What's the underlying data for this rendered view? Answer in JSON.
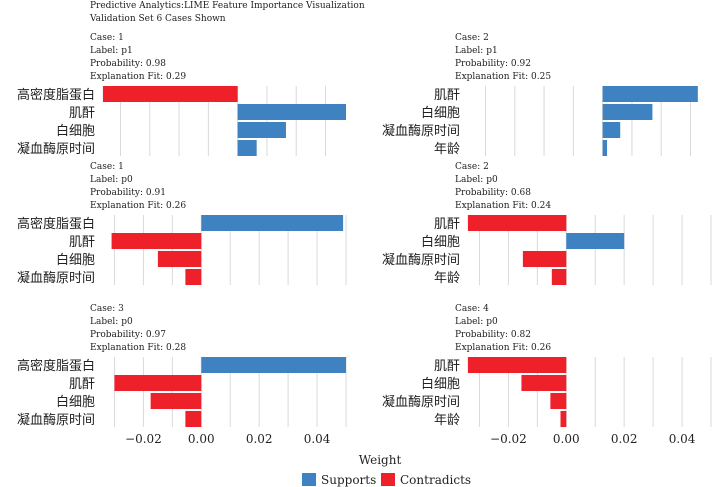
{
  "title": "Predictive Analytics:LIME Feature Importance Visualization",
  "subtitle": "Validation Set 6 Cases Shown",
  "colors": {
    "supports": "#3E82C1",
    "contradicts": "#EE2029",
    "grid": "#D9D9D9"
  },
  "chart_data": {
    "type": "bar",
    "orientation": "horizontal",
    "xlabel": "Weight",
    "xlim": [
      -0.035,
      0.05
    ],
    "x_ticks": [
      "−0.02",
      "0.00",
      "0.02",
      "0.04"
    ],
    "x_tick_values": [
      -0.02,
      0.0,
      0.02,
      0.04
    ],
    "legend": {
      "position": "bottom",
      "items": [
        {
          "label": "Supports",
          "key": "supports"
        },
        {
          "label": "Contradicts",
          "key": "contradicts"
        }
      ]
    },
    "panels": [
      {
        "case_label": "Case: 1",
        "label_text": "Label: p1",
        "probability_text": "Probability: 0.98",
        "fit_text": "Explanation Fit: 0.29",
        "xlim": [
          -0.047,
          0.037
        ],
        "features": [
          "高密度脂蛋白",
          "肌酐",
          "白细胞",
          "凝血酶原时间"
        ],
        "values": [
          -0.046,
          0.037,
          0.0165,
          0.0065
        ]
      },
      {
        "case_label": "Case: 2",
        "label_text": "Label: p1",
        "probability_text": "Probability: 0.92",
        "fit_text": "Explanation Fit: 0.25",
        "xlim": [
          -0.047,
          0.037
        ],
        "features": [
          "肌酐",
          "白细胞",
          "凝血酶原时间",
          "年龄"
        ],
        "values": [
          0.0325,
          0.017,
          0.006,
          0.0015
        ]
      },
      {
        "case_label": "Case: 1",
        "label_text": "Label: p0",
        "probability_text": "Probability: 0.91",
        "fit_text": "Explanation Fit: 0.26",
        "xlim": [
          -0.035,
          0.05
        ],
        "features": [
          "高密度脂蛋白",
          "肌酐",
          "白细胞",
          "凝血酶原时间"
        ],
        "values": [
          0.049,
          -0.031,
          -0.015,
          -0.0055
        ]
      },
      {
        "case_label": "Case: 2",
        "label_text": "Label: p0",
        "probability_text": "Probability: 0.68",
        "fit_text": "Explanation Fit: 0.24",
        "xlim": [
          -0.035,
          0.05
        ],
        "features": [
          "肌酐",
          "白细胞",
          "凝血酶原时间",
          "年龄"
        ],
        "values": [
          -0.034,
          0.02,
          -0.015,
          -0.005
        ]
      },
      {
        "case_label": "Case: 3",
        "label_text": "Label: p0",
        "probability_text": "Probability: 0.97",
        "fit_text": "Explanation Fit: 0.28",
        "xlim": [
          -0.035,
          0.05
        ],
        "features": [
          "高密度脂蛋白",
          "肌酐",
          "白细胞",
          "凝血酶原时间"
        ],
        "values": [
          0.05,
          -0.03,
          -0.0175,
          -0.0055
        ]
      },
      {
        "case_label": "Case: 4",
        "label_text": "Label: p0",
        "probability_text": "Probability: 0.82",
        "fit_text": "Explanation Fit: 0.26",
        "xlim": [
          -0.035,
          0.05
        ],
        "features": [
          "肌酐",
          "白细胞",
          "凝血酶原时间",
          "年龄"
        ],
        "values": [
          -0.034,
          -0.0155,
          -0.0055,
          -0.002
        ]
      }
    ]
  }
}
